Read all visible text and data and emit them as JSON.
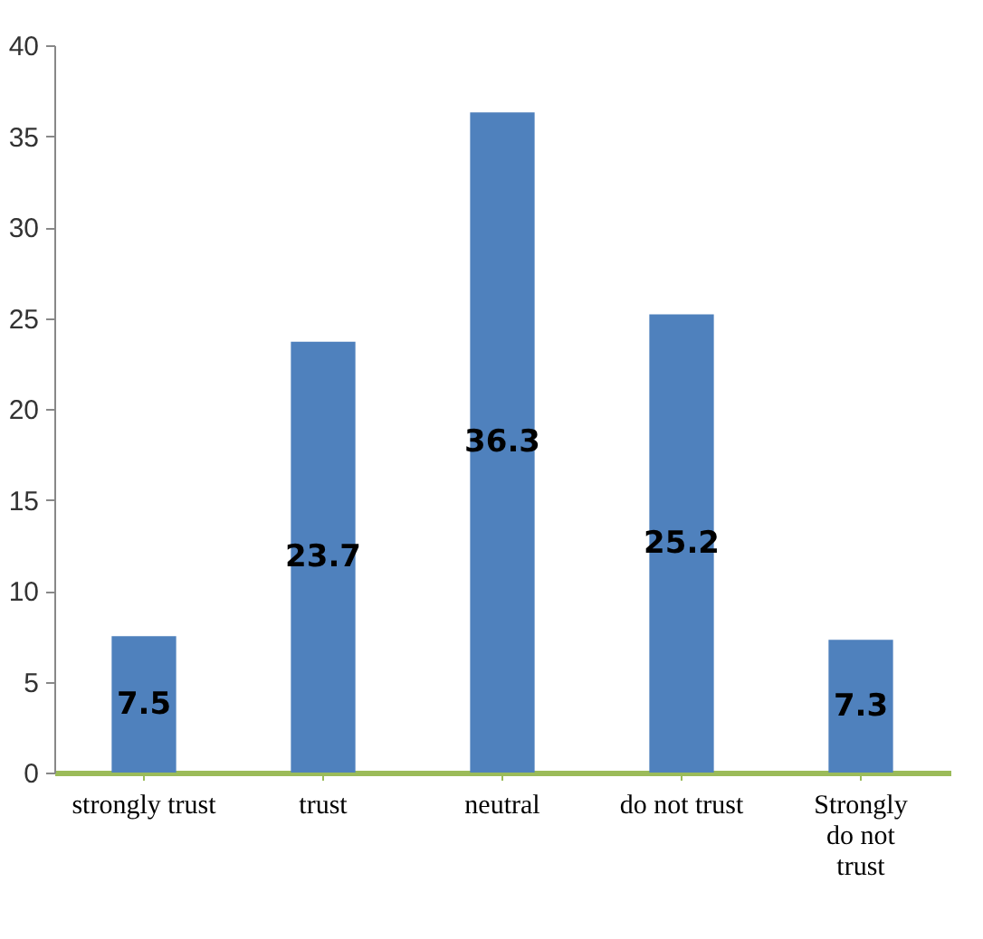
{
  "chart_data": {
    "type": "bar",
    "categories": [
      "strongly trust",
      "trust",
      "neutral",
      "do not trust",
      "Strongly do not trust"
    ],
    "values": [
      7.5,
      23.7,
      36.3,
      25.2,
      7.3
    ],
    "color": "#4f81bd",
    "ylim": [
      0,
      40
    ],
    "yticks": [
      0,
      5,
      10,
      15,
      20,
      25,
      30,
      35,
      40
    ],
    "grid": false,
    "data_labels": true
  }
}
